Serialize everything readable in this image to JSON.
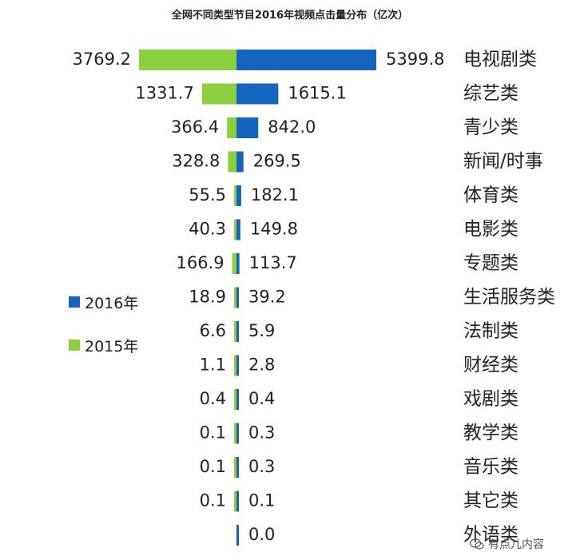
{
  "title": "全网不同类型节目2016年视频点击量分布（亿次）",
  "legend": [
    {
      "label": "2016年",
      "color": "#1565c0"
    },
    {
      "label": "2015年",
      "color": "#8ccf3f"
    }
  ],
  "watermark": "有点儿内容",
  "chart_data": {
    "type": "bar",
    "orientation": "horizontal-diverging",
    "title": "全网不同类型节目2016年视频点击量分布（亿次）",
    "categories": [
      "电视剧类",
      "综艺类",
      "青少类",
      "新闻/时事",
      "体育类",
      "电影类",
      "专题类",
      "生活服务类",
      "法制类",
      "财经类",
      "戏剧类",
      "教学类",
      "音乐类",
      "其它类",
      "外语类"
    ],
    "series": [
      {
        "name": "2015年",
        "color": "#8ccf3f",
        "direction": "left",
        "values": [
          3769.2,
          1331.7,
          366.4,
          328.8,
          55.5,
          40.3,
          166.9,
          18.9,
          6.6,
          1.1,
          0.4,
          0.1,
          0.1,
          0.1,
          null
        ],
        "labels": [
          "3769.2",
          "1331.7",
          "366.4",
          "328.8",
          "55.5",
          "40.3",
          "166.9",
          "18.9",
          "6.6",
          "1.1",
          "0.4",
          "0.1",
          "0.1",
          "0.1",
          ""
        ]
      },
      {
        "name": "2016年",
        "color": "#1565c0",
        "direction": "right",
        "values": [
          5399.8,
          1615.1,
          842.0,
          269.5,
          182.1,
          149.8,
          113.7,
          39.2,
          5.9,
          2.8,
          0.4,
          0.3,
          0.3,
          0.1,
          0.0
        ],
        "labels": [
          "5399.8",
          "1615.1",
          "842.0",
          "269.5",
          "182.1",
          "149.8",
          "113.7",
          "39.2",
          "5.9",
          "2.8",
          "0.4",
          "0.3",
          "0.3",
          "0.1",
          "0.0"
        ]
      }
    ]
  }
}
